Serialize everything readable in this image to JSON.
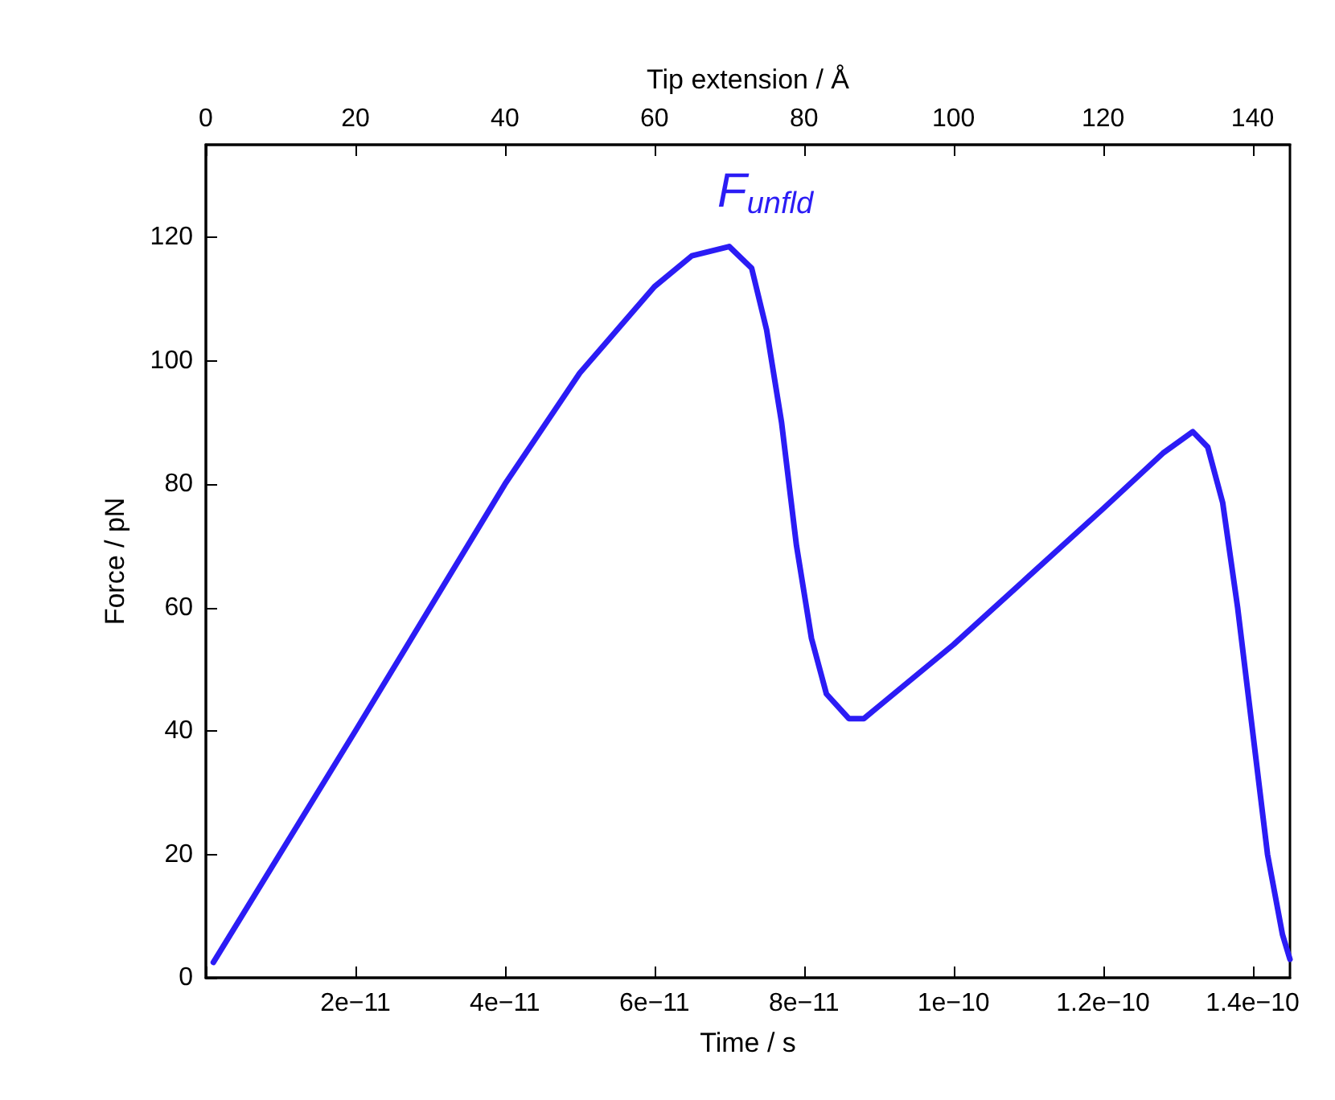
{
  "chart_data": {
    "type": "line",
    "xlabel": "Time / s",
    "ylabel": "Force / pN",
    "x2label": "Tip extension / Å",
    "xlim": [
      0,
      1.45e-10
    ],
    "xticks": [
      {
        "value": 0,
        "label": null
      },
      {
        "value": 2e-11,
        "label": "2e−11"
      },
      {
        "value": 4e-11,
        "label": "4e−11"
      },
      {
        "value": 6e-11,
        "label": "6e−11"
      },
      {
        "value": 8e-11,
        "label": "8e−11"
      },
      {
        "value": 1e-10,
        "label": "1e−10"
      },
      {
        "value": 1.2e-10,
        "label": "1.2e−10"
      },
      {
        "value": 1.4e-10,
        "label": "1.4e−10"
      }
    ],
    "x2lim": [
      0,
      145
    ],
    "x2ticks": [
      0,
      20,
      40,
      60,
      80,
      100,
      120,
      140
    ],
    "ylim": [
      0,
      135
    ],
    "yticks": [
      0,
      20,
      40,
      60,
      80,
      100,
      120
    ],
    "grid": false,
    "marker": "none",
    "line_style": "solid",
    "annotations": [
      "F$_{unfld}$"
    ],
    "series": [
      {
        "color": "#2b1cf5",
        "x": [
          1e-12,
          2e-11,
          4e-11,
          5e-11,
          6e-11,
          6.5e-11,
          7e-11,
          7.3e-11,
          7.5e-11,
          7.7e-11,
          7.9e-11,
          8.1e-11,
          8.3e-11,
          8.6e-11,
          8.8e-11,
          9e-11,
          1e-10,
          1.1e-10,
          1.2e-10,
          1.28e-10,
          1.32e-10,
          1.34e-10,
          1.36e-10,
          1.38e-10,
          1.4e-10,
          1.42e-10,
          1.44e-10,
          1.45e-10
        ],
        "values": [
          2.5,
          40,
          80,
          98,
          112,
          117,
          118.5,
          115,
          105,
          90,
          70,
          55,
          46,
          42,
          42,
          44,
          54,
          65,
          76,
          85,
          88.5,
          86,
          77,
          60,
          40,
          20,
          7,
          3
        ]
      }
    ]
  }
}
